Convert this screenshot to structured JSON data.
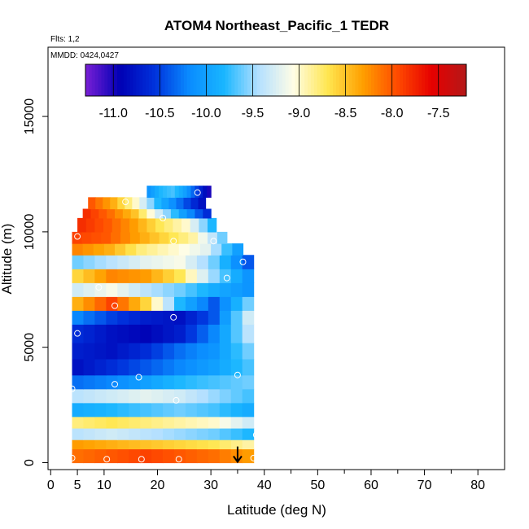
{
  "chart_data": {
    "type": "heatmap",
    "title": "ATOM4 Northeast_Pacific_1 TEDR",
    "annotations": [
      "Flts: 1,2",
      "MMDD: 0424,0427"
    ],
    "xlabel": "Latitude (deg N)",
    "ylabel": "Altitude (m)",
    "xlim": [
      -0.5,
      85
    ],
    "ylim": [
      -300,
      18000
    ],
    "xticks": [
      0,
      5,
      10,
      20,
      30,
      40,
      50,
      60,
      70,
      80
    ],
    "xticks_minor": [
      35,
      45,
      55,
      65,
      75
    ],
    "yticks": [
      0,
      5000,
      10000,
      15000
    ],
    "grid": false,
    "colorbar": {
      "range": [
        -11.3,
        -7.2
      ],
      "ticks": [
        -11.0,
        -10.5,
        -10.0,
        -9.5,
        -9.0,
        -8.5,
        -8.0,
        -7.5
      ],
      "tick_labels": [
        "-11.0",
        "-10.5",
        "-10.0",
        "-9.5",
        "-9.0",
        "-8.5",
        "-8.0",
        "-7.5"
      ],
      "colors": [
        "#7a1fd6",
        "#0000b4",
        "#0032dc",
        "#0a8cff",
        "#19b6ff",
        "#b4e0ff",
        "#fffde6",
        "#ffe650",
        "#ffa000",
        "#ff4b00",
        "#e60000",
        "#b41919"
      ],
      "position": "top"
    },
    "layers": [
      {
        "alt": [
          0,
          600
        ],
        "lat": [
          4,
          38
        ],
        "values": [
          -8.1,
          -8.0,
          -7.9,
          -8.0,
          -8.1,
          -8.3
        ]
      },
      {
        "alt": [
          600,
          1000
        ],
        "lat": [
          4,
          38
        ],
        "values": [
          -8.3,
          -8.4,
          -8.5,
          -8.6,
          -8.7,
          -8.9
        ]
      },
      {
        "alt": [
          1000,
          1500
        ],
        "lat": [
          4,
          38
        ],
        "values": [
          -9.4,
          -9.3,
          -9.4,
          -9.5,
          -9.6,
          -9.8
        ]
      },
      {
        "alt": [
          1500,
          2000
        ],
        "lat": [
          4,
          38
        ],
        "values": [
          -8.8,
          -8.7,
          -8.8,
          -8.9,
          -9.0,
          -9.3
        ]
      },
      {
        "alt": [
          2000,
          2600
        ],
        "lat": [
          4,
          38
        ],
        "values": [
          -9.9,
          -9.8,
          -9.7,
          -9.6,
          -9.7,
          -9.9
        ]
      },
      {
        "alt": [
          2600,
          3200
        ],
        "lat": [
          4,
          38
        ],
        "values": [
          -9.4,
          -9.3,
          -9.2,
          -9.3,
          -9.5,
          -9.7
        ]
      },
      {
        "alt": [
          3200,
          3800
        ],
        "lat": [
          4,
          38
        ],
        "values": [
          -10.3,
          -10.2,
          -10.0,
          -9.8,
          -9.7,
          -9.6
        ]
      },
      {
        "alt": [
          3800,
          4500
        ],
        "lat": [
          4,
          38
        ],
        "values": [
          -10.8,
          -10.6,
          -10.4,
          -10.2,
          -10.0,
          -9.7
        ]
      },
      {
        "alt": [
          4500,
          5200
        ],
        "lat": [
          4,
          38
        ],
        "values": [
          -10.7,
          -10.8,
          -10.6,
          -10.3,
          -10.1,
          -9.6
        ]
      },
      {
        "alt": [
          5200,
          6000
        ],
        "lat": [
          4,
          38
        ],
        "values": [
          -10.6,
          -10.8,
          -10.9,
          -10.7,
          -10.2,
          -9.4
        ]
      },
      {
        "alt": [
          6000,
          6600
        ],
        "lat": [
          4,
          38
        ],
        "values": [
          -10.2,
          -10.5,
          -10.7,
          -10.8,
          -10.4,
          -9.3
        ]
      },
      {
        "alt": [
          6600,
          7200
        ],
        "lat": [
          4,
          38
        ],
        "values": [
          -8.4,
          -7.9,
          -8.6,
          -9.8,
          -10.4,
          -9.6
        ]
      },
      {
        "alt": [
          7200,
          7800
        ],
        "lat": [
          4,
          38
        ],
        "values": [
          -9.3,
          -9.1,
          -9.4,
          -9.6,
          -9.9,
          -10.1
        ]
      },
      {
        "alt": [
          7800,
          8400
        ],
        "lat": [
          4,
          38
        ],
        "values": [
          -8.6,
          -8.2,
          -8.3,
          -8.7,
          -9.5,
          -10.1
        ]
      },
      {
        "alt": [
          8400,
          9000
        ],
        "lat": [
          4,
          38
        ],
        "values": [
          -9.6,
          -9.4,
          -9.2,
          -9.1,
          -9.6,
          -10.4
        ]
      },
      {
        "alt": [
          9000,
          9500
        ],
        "lat": [
          4,
          36
        ],
        "values": [
          -8.2,
          -8.4,
          -8.8,
          -9.0,
          -9.2,
          -10.0
        ]
      },
      {
        "alt": [
          9500,
          10000
        ],
        "lat": [
          4,
          33
        ],
        "values": [
          -7.9,
          -8.0,
          -8.3,
          -8.6,
          -8.9,
          -9.6
        ]
      },
      {
        "alt": [
          10000,
          10600
        ],
        "lat": [
          5,
          31
        ],
        "values": [
          -7.8,
          -8.0,
          -8.3,
          -8.7,
          -9.0,
          -9.8
        ]
      },
      {
        "alt": [
          10600,
          11000
        ],
        "lat": [
          6,
          30
        ],
        "values": [
          -7.8,
          -8.1,
          -8.5,
          -9.3,
          -10.0,
          -10.6
        ]
      },
      {
        "alt": [
          11000,
          11500
        ],
        "lat": [
          7,
          29
        ],
        "values": [
          -8.0,
          -8.4,
          -9.0,
          -9.8,
          -10.3,
          -10.8
        ]
      },
      {
        "alt": [
          11500,
          12000
        ],
        "lat": [
          18,
          30
        ],
        "values": [
          -10.1,
          -9.8,
          -9.7,
          -10.0,
          -10.5,
          -11.0
        ]
      }
    ],
    "flight_markers": [
      {
        "lat": 4,
        "alt": 200
      },
      {
        "lat": 10.5,
        "alt": 150
      },
      {
        "lat": 17,
        "alt": 150
      },
      {
        "lat": 24,
        "alt": 150
      },
      {
        "lat": 38,
        "alt": 200
      },
      {
        "lat": 4,
        "alt": 3200
      },
      {
        "lat": 12,
        "alt": 3400
      },
      {
        "lat": 16.5,
        "alt": 3700
      },
      {
        "lat": 23.5,
        "alt": 2700
      },
      {
        "lat": 35,
        "alt": 3800
      },
      {
        "lat": 38.5,
        "alt": 1200
      },
      {
        "lat": 5,
        "alt": 5600
      },
      {
        "lat": 23,
        "alt": 6300
      },
      {
        "lat": 12,
        "alt": 6800
      },
      {
        "lat": 9,
        "alt": 7600
      },
      {
        "lat": 33,
        "alt": 8000
      },
      {
        "lat": 36,
        "alt": 8700
      },
      {
        "lat": 5,
        "alt": 9800
      },
      {
        "lat": 23,
        "alt": 9600
      },
      {
        "lat": 30.5,
        "alt": 9600
      },
      {
        "lat": 21,
        "alt": 10600
      },
      {
        "lat": 14,
        "alt": 11300
      },
      {
        "lat": 27.5,
        "alt": 11700
      }
    ],
    "arrow": {
      "lat": 35,
      "alt_from": 700,
      "alt_to": 0
    }
  }
}
